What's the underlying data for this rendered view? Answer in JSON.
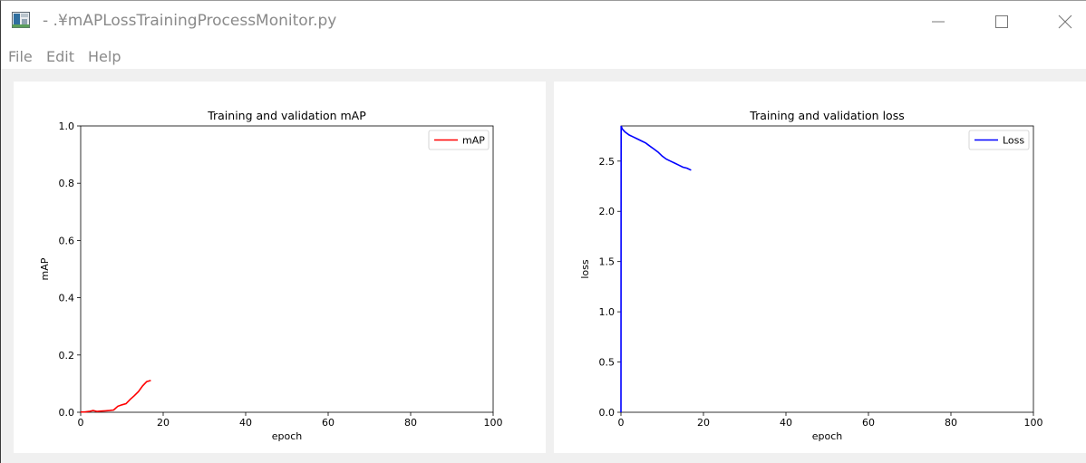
{
  "window": {
    "title": "- .¥mAPLossTrainingProcessMonitor.py",
    "icon": "python-app-icon",
    "controls": [
      "minimize-icon",
      "maximize-icon",
      "close-icon"
    ]
  },
  "menu": {
    "items": [
      {
        "label": "File"
      },
      {
        "label": "Edit"
      },
      {
        "label": "Help"
      }
    ]
  },
  "chart_data": [
    {
      "type": "line",
      "title": "Training and validation mAP",
      "xlabel": "epoch",
      "ylabel": "mAP",
      "xlim": [
        0,
        100
      ],
      "ylim": [
        0,
        1.0
      ],
      "xticks": [
        "0",
        "20",
        "40",
        "60",
        "80",
        "100"
      ],
      "yticks": [
        "0.0",
        "0.2",
        "0.4",
        "0.6",
        "0.8",
        "1.0"
      ],
      "legend_position": "top-right",
      "grid": false,
      "series": [
        {
          "name": "mAP",
          "color": "#ff0000",
          "x": [
            0,
            1,
            2,
            3,
            4,
            5,
            6,
            7,
            8,
            9,
            10,
            11,
            12,
            13,
            14,
            15,
            16,
            17
          ],
          "y": [
            0.001,
            0.001,
            0.003,
            0.006,
            0.003,
            0.004,
            0.005,
            0.006,
            0.008,
            0.021,
            0.026,
            0.03,
            0.045,
            0.058,
            0.072,
            0.092,
            0.107,
            0.111
          ]
        }
      ]
    },
    {
      "type": "line",
      "title": "Training and validation loss",
      "xlabel": "epoch",
      "ylabel": "loss",
      "xlim": [
        0,
        100
      ],
      "ylim": [
        0,
        2.85
      ],
      "yticks_values": [
        0,
        0.5,
        1.0,
        1.5,
        2.0,
        2.5
      ],
      "xticks": [
        "0",
        "20",
        "40",
        "60",
        "80",
        "100"
      ],
      "yticks": [
        "0.0",
        "0.5",
        "1.0",
        "1.5",
        "2.0",
        "2.5"
      ],
      "legend_position": "top-right",
      "grid": false,
      "series": [
        {
          "name": "Loss",
          "color": "#0000ff",
          "x": [
            0,
            0.05,
            0.3,
            1,
            2,
            3,
            4,
            5,
            6,
            7,
            8,
            9,
            10,
            11,
            12,
            13,
            14,
            15,
            16,
            17
          ],
          "y": [
            0,
            2.85,
            2.82,
            2.79,
            2.76,
            2.74,
            2.72,
            2.7,
            2.68,
            2.65,
            2.62,
            2.59,
            2.55,
            2.52,
            2.5,
            2.48,
            2.46,
            2.44,
            2.43,
            2.41
          ]
        }
      ]
    }
  ]
}
